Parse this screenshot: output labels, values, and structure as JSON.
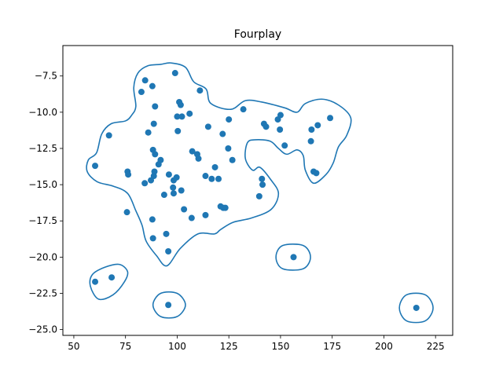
{
  "chart_data": {
    "type": "scatter",
    "title": "Fourplay",
    "xlabel": "",
    "ylabel": "",
    "xlim": [
      44.7,
      233.3
    ],
    "ylim": [
      -25.4,
      -5.4
    ],
    "xticks": [
      50,
      75,
      100,
      125,
      150,
      175,
      200,
      225
    ],
    "yticks": [
      -7.5,
      -10.0,
      -12.5,
      -15.0,
      -17.5,
      -20.0,
      -22.5,
      -25.0
    ],
    "ytick_labels": [
      "−7.5",
      "−10.0",
      "−12.5",
      "−15.0",
      "−17.5",
      "−20.0",
      "−22.5",
      "−25.0"
    ],
    "grid": false,
    "color": "#1f77b4",
    "points": [
      [
        99.0,
        -7.3
      ],
      [
        84.5,
        -7.8
      ],
      [
        88.0,
        -8.2
      ],
      [
        82.7,
        -8.6
      ],
      [
        111.0,
        -8.5
      ],
      [
        101.0,
        -9.3
      ],
      [
        101.7,
        -9.5
      ],
      [
        89.3,
        -9.6
      ],
      [
        132.0,
        -9.8
      ],
      [
        100.0,
        -10.3
      ],
      [
        102.3,
        -10.3
      ],
      [
        106.0,
        -10.1
      ],
      [
        125.0,
        -10.5
      ],
      [
        150.0,
        -10.2
      ],
      [
        148.7,
        -10.5
      ],
      [
        88.7,
        -10.8
      ],
      [
        115.0,
        -11.0
      ],
      [
        142.0,
        -10.8
      ],
      [
        143.0,
        -11.0
      ],
      [
        149.7,
        -11.2
      ],
      [
        100.3,
        -11.3
      ],
      [
        86.0,
        -11.4
      ],
      [
        122.0,
        -11.5
      ],
      [
        168.0,
        -10.9
      ],
      [
        165.0,
        -11.2
      ],
      [
        174.0,
        -10.4
      ],
      [
        67.0,
        -11.6
      ],
      [
        152.0,
        -12.3
      ],
      [
        164.7,
        -12.0
      ],
      [
        124.7,
        -12.5
      ],
      [
        88.3,
        -12.6
      ],
      [
        89.3,
        -12.9
      ],
      [
        107.3,
        -12.7
      ],
      [
        109.7,
        -12.9
      ],
      [
        110.3,
        -13.2
      ],
      [
        92.0,
        -13.3
      ],
      [
        126.7,
        -13.3
      ],
      [
        60.3,
        -13.7
      ],
      [
        91.0,
        -13.6
      ],
      [
        118.3,
        -13.8
      ],
      [
        76.0,
        -14.1
      ],
      [
        76.3,
        -14.3
      ],
      [
        89.0,
        -14.1
      ],
      [
        88.7,
        -14.4
      ],
      [
        96.0,
        -14.3
      ],
      [
        99.7,
        -14.5
      ],
      [
        166.0,
        -14.1
      ],
      [
        167.3,
        -14.2
      ],
      [
        113.7,
        -14.4
      ],
      [
        120.0,
        -14.6
      ],
      [
        116.7,
        -14.6
      ],
      [
        141.0,
        -14.6
      ],
      [
        141.3,
        -15.0
      ],
      [
        87.3,
        -14.7
      ],
      [
        98.3,
        -14.7
      ],
      [
        84.3,
        -14.9
      ],
      [
        98.0,
        -15.2
      ],
      [
        102.0,
        -15.4
      ],
      [
        98.3,
        -15.6
      ],
      [
        93.7,
        -15.7
      ],
      [
        139.7,
        -15.8
      ],
      [
        121.0,
        -16.5
      ],
      [
        122.3,
        -16.6
      ],
      [
        123.3,
        -16.6
      ],
      [
        103.3,
        -16.7
      ],
      [
        75.7,
        -16.9
      ],
      [
        113.7,
        -17.1
      ],
      [
        107.0,
        -17.3
      ],
      [
        88.0,
        -17.4
      ],
      [
        94.7,
        -18.4
      ],
      [
        88.3,
        -18.7
      ],
      [
        95.7,
        -19.6
      ],
      [
        156.3,
        -20.0
      ],
      [
        68.3,
        -21.4
      ],
      [
        60.3,
        -21.7
      ],
      [
        95.7,
        -23.3
      ],
      [
        215.7,
        -23.5
      ]
    ],
    "contours": [
      [
        [
          97,
          -6.6
        ],
        [
          104,
          -6.9
        ],
        [
          108,
          -7.9
        ],
        [
          114,
          -8.4
        ],
        [
          116.3,
          -9.4
        ],
        [
          126,
          -9.8
        ],
        [
          133,
          -9.2
        ],
        [
          141,
          -9.3
        ],
        [
          152,
          -9.7
        ],
        [
          158,
          -10.0
        ],
        [
          162,
          -9.4
        ],
        [
          170,
          -9.1
        ],
        [
          178,
          -9.5
        ],
        [
          184,
          -10.4
        ],
        [
          182,
          -11.6
        ],
        [
          178,
          -12.4
        ],
        [
          175.5,
          -13.5
        ],
        [
          172,
          -14.3
        ],
        [
          166,
          -14.9
        ],
        [
          162,
          -14.0
        ],
        [
          161,
          -13.0
        ],
        [
          158,
          -12.6
        ],
        [
          153,
          -12.9
        ],
        [
          149,
          -12.5
        ],
        [
          145,
          -12.0
        ],
        [
          138,
          -11.9
        ],
        [
          134,
          -12.1
        ],
        [
          133,
          -13.2
        ],
        [
          136.5,
          -14.0
        ],
        [
          140,
          -13.8
        ],
        [
          145,
          -14.6
        ],
        [
          149,
          -15.6
        ],
        [
          145.5,
          -16.7
        ],
        [
          136,
          -17.3
        ],
        [
          127,
          -17.6
        ],
        [
          121,
          -18.1
        ],
        [
          118,
          -18.4
        ],
        [
          110,
          -18.4
        ],
        [
          101.5,
          -19.4
        ],
        [
          95,
          -20.6
        ],
        [
          90,
          -19.9
        ],
        [
          85,
          -18.9
        ],
        [
          83,
          -17.8
        ],
        [
          80,
          -16.8
        ],
        [
          76,
          -15.6
        ],
        [
          69,
          -15.1
        ],
        [
          61.3,
          -14.8
        ],
        [
          56.5,
          -14.1
        ],
        [
          57,
          -13.3
        ],
        [
          61,
          -12.8
        ],
        [
          63.5,
          -11.5
        ],
        [
          68,
          -10.8
        ],
        [
          75,
          -10.6
        ],
        [
          78,
          -10.2
        ],
        [
          80,
          -9.6
        ],
        [
          79,
          -8.3
        ],
        [
          81,
          -7.3
        ],
        [
          85.7,
          -6.8
        ],
        [
          92,
          -6.7
        ],
        [
          97,
          -6.6
        ]
      ],
      [
        [
          58,
          -22.0
        ],
        [
          62,
          -22.9
        ],
        [
          69,
          -22.6
        ],
        [
          74.5,
          -21.7
        ],
        [
          76,
          -21.0
        ],
        [
          72,
          -20.5
        ],
        [
          65,
          -20.7
        ],
        [
          59,
          -21.2
        ],
        [
          58,
          -22.0
        ]
      ],
      [
        [
          88.3,
          -23.3
        ],
        [
          92,
          -22.5
        ],
        [
          100,
          -22.5
        ],
        [
          104,
          -23.3
        ],
        [
          100,
          -24.1
        ],
        [
          92,
          -24.1
        ],
        [
          88.3,
          -23.3
        ]
      ],
      [
        [
          147.8,
          -20.0
        ],
        [
          151,
          -19.2
        ],
        [
          161,
          -19.2
        ],
        [
          164.5,
          -20.0
        ],
        [
          161,
          -20.8
        ],
        [
          151,
          -20.8
        ],
        [
          147.8,
          -20.0
        ]
      ],
      [
        [
          207.5,
          -23.5
        ],
        [
          211,
          -22.6
        ],
        [
          220,
          -22.6
        ],
        [
          223.8,
          -23.5
        ],
        [
          220,
          -24.4
        ],
        [
          211,
          -24.4
        ],
        [
          207.5,
          -23.5
        ]
      ]
    ]
  }
}
